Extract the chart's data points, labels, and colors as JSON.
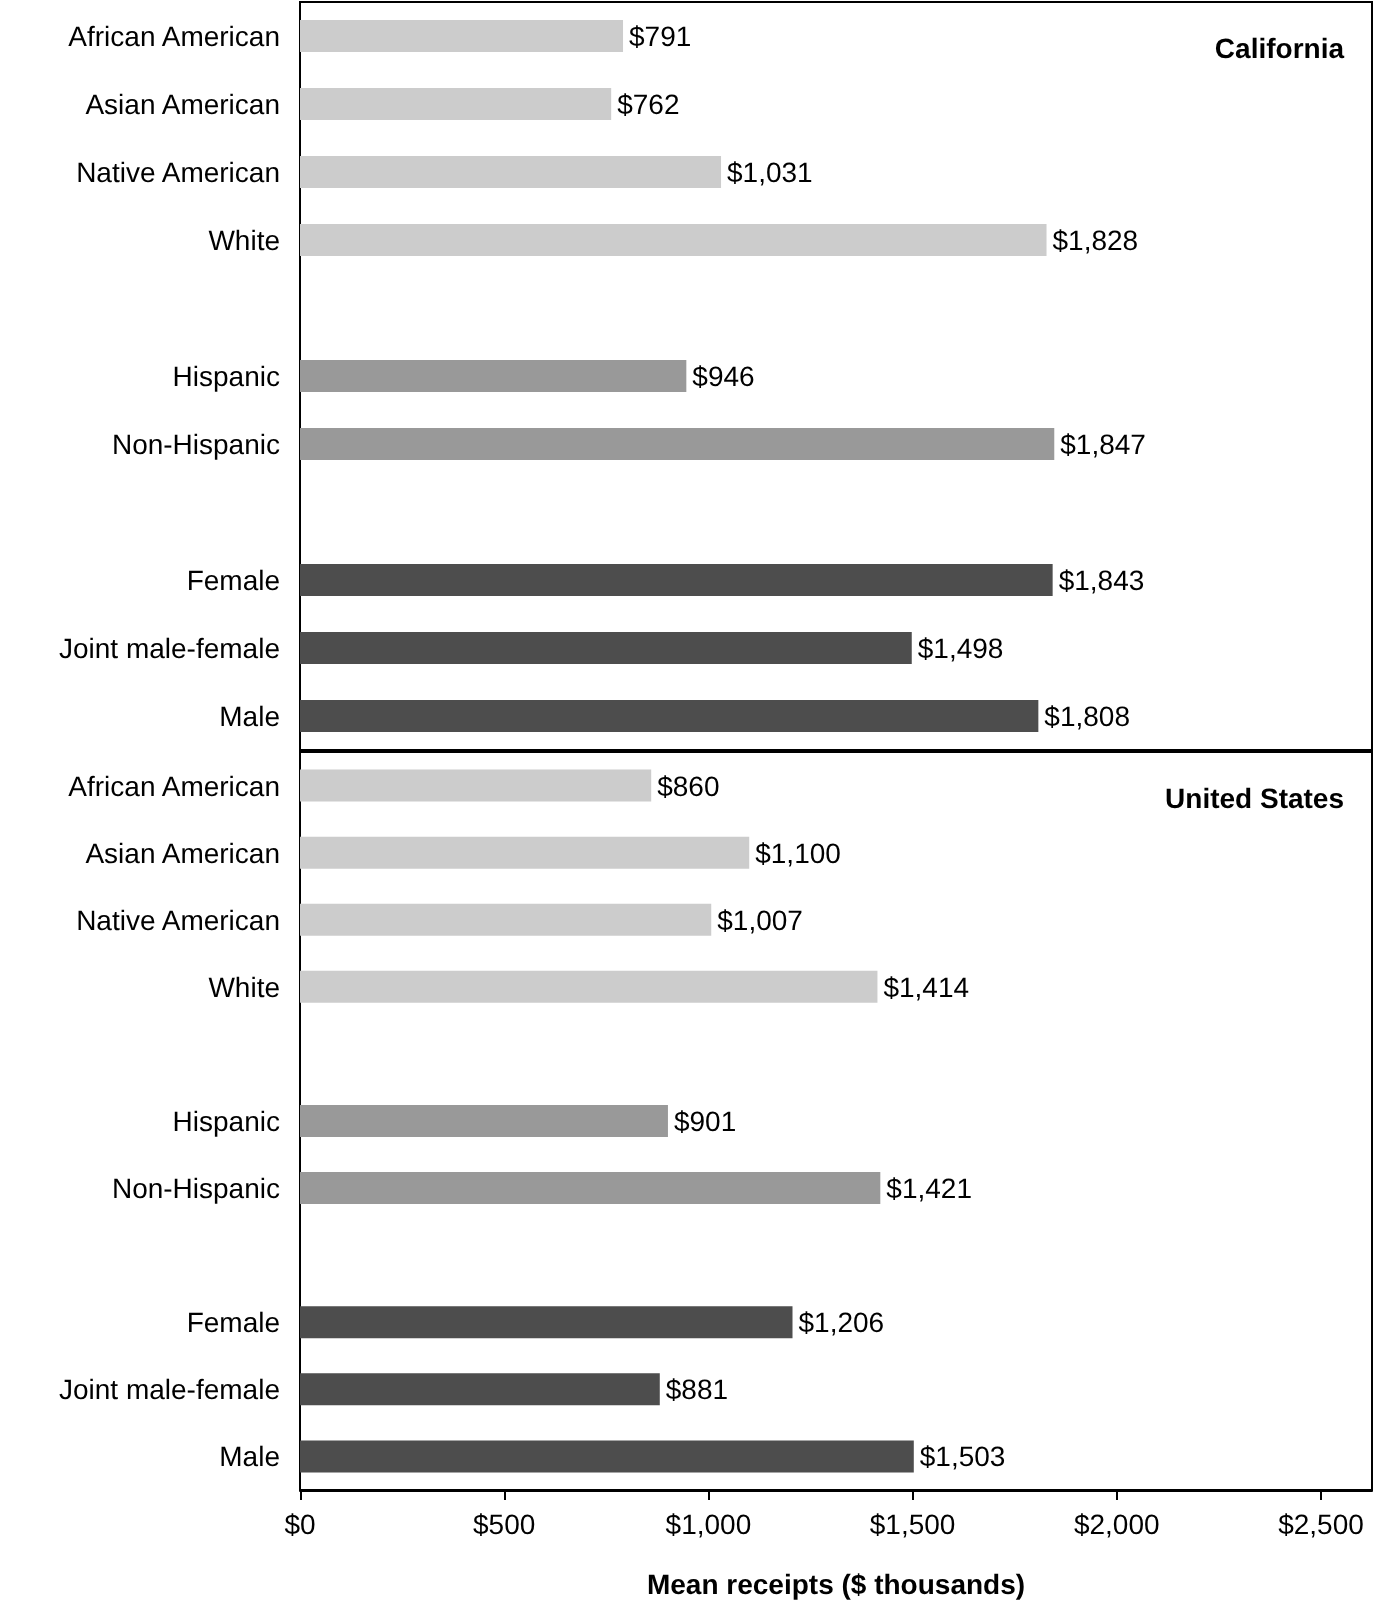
{
  "chart_data": [
    {
      "type": "bar",
      "orientation": "horizontal",
      "title": "California",
      "tick_labels": "y",
      "grid": false,
      "categories": [
        "African American",
        "Asian American",
        "Native American",
        "White",
        null,
        "Hispanic",
        "Non-Hispanic",
        null,
        "Female",
        "Joint male-female",
        "Male"
      ],
      "values": [
        791,
        762,
        1031,
        1828,
        null,
        946,
        1847,
        null,
        1843,
        1498,
        1808
      ],
      "value_labels": [
        "$791",
        "$762",
        "$1,031",
        "$1,828",
        null,
        "$946",
        "$1,847",
        null,
        "$1,843",
        "$1,498",
        "$1,808"
      ],
      "colors": [
        "#cccccc",
        "#cccccc",
        "#cccccc",
        "#cccccc",
        "#cccccc",
        "#999999",
        "#999999",
        "#999999",
        "#4d4d4d",
        "#4d4d4d",
        "#4d4d4d"
      ],
      "xlim": [
        0,
        2625
      ]
    },
    {
      "type": "bar",
      "orientation": "horizontal",
      "title": "United States",
      "xlabel": "Mean receipts ($ thousands)",
      "grid": false,
      "categories": [
        "African American",
        "Asian American",
        "Native American",
        "White",
        null,
        "Hispanic",
        "Non-Hispanic",
        null,
        "Female",
        "Joint male-female",
        "Male"
      ],
      "values": [
        860,
        1100,
        1007,
        1414,
        null,
        901,
        1421,
        null,
        1206,
        881,
        1503
      ],
      "value_labels": [
        "$860",
        "$1,100",
        "$1,007",
        "$1,414",
        null,
        "$901",
        "$1,421",
        null,
        "$1,206",
        "$881",
        "$1,503"
      ],
      "colors": [
        "#cccccc",
        "#cccccc",
        "#cccccc",
        "#cccccc",
        "#cccccc",
        "#999999",
        "#999999",
        "#999999",
        "#4d4d4d",
        "#4d4d4d",
        "#4d4d4d"
      ],
      "xlim": [
        0,
        2625
      ],
      "xticks": [
        {
          "value": 0,
          "label": "$0"
        },
        {
          "value": 500,
          "label": "$500"
        },
        {
          "value": 1000,
          "label": "$1,000"
        },
        {
          "value": 1500,
          "label": "$1,500"
        },
        {
          "value": 2000,
          "label": "$2,000"
        },
        {
          "value": 2500,
          "label": "$2,500"
        }
      ]
    }
  ]
}
